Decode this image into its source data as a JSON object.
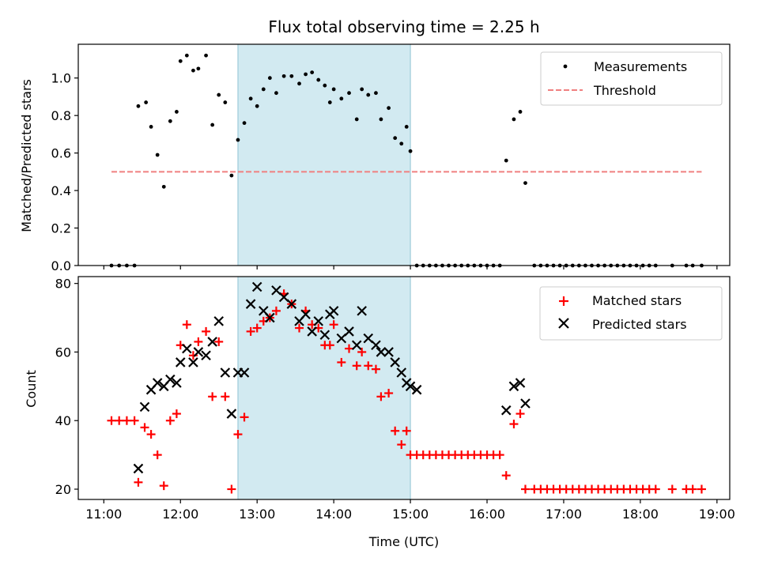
{
  "title": "Flux total observing time = 2.25 h",
  "colors": {
    "measurement": "#000000",
    "threshold": "#f08080",
    "matched": "#ff0000",
    "predicted": "#000000",
    "shade": "#add8e6"
  },
  "chart_data": [
    {
      "type": "scatter",
      "ylabel": "Matched/Predicted stars",
      "xlabel": "",
      "xlim": [
        "10:40",
        "19:10"
      ],
      "ylim": [
        0,
        1.18
      ],
      "xticks": [
        "11:00",
        "12:00",
        "13:00",
        "14:00",
        "15:00",
        "16:00",
        "17:00",
        "18:00",
        "19:00"
      ],
      "yticks": [
        "0.0",
        "0.2",
        "0.4",
        "0.6",
        "0.8",
        "1.0"
      ],
      "legend_position": "top-right",
      "shaded_interval": [
        "12:45",
        "15:00"
      ],
      "threshold": {
        "name": "Threshold",
        "value": 0.5,
        "x": [
          "11:06",
          "18:48"
        ]
      },
      "series": [
        {
          "name": "Measurements",
          "points": [
            [
              "11:06",
              0
            ],
            [
              "11:12",
              0
            ],
            [
              "11:18",
              0
            ],
            [
              "11:24",
              0
            ],
            [
              "11:27",
              0.85
            ],
            [
              "11:33",
              0.87
            ],
            [
              "11:37",
              0.74
            ],
            [
              "11:42",
              0.59
            ],
            [
              "11:47",
              0.42
            ],
            [
              "11:52",
              0.77
            ],
            [
              "11:57",
              0.82
            ],
            [
              "12:00",
              1.09
            ],
            [
              "12:05",
              1.12
            ],
            [
              "12:10",
              1.04
            ],
            [
              "12:14",
              1.05
            ],
            [
              "12:20",
              1.12
            ],
            [
              "12:25",
              0.75
            ],
            [
              "12:30",
              0.91
            ],
            [
              "12:35",
              0.87
            ],
            [
              "12:40",
              0.48
            ],
            [
              "12:45",
              0.67
            ],
            [
              "12:50",
              0.76
            ],
            [
              "12:55",
              0.89
            ],
            [
              "13:00",
              0.85
            ],
            [
              "13:05",
              0.94
            ],
            [
              "13:10",
              1.0
            ],
            [
              "13:15",
              0.92
            ],
            [
              "13:21",
              1.01
            ],
            [
              "13:27",
              1.01
            ],
            [
              "13:33",
              0.97
            ],
            [
              "13:38",
              1.02
            ],
            [
              "13:43",
              1.03
            ],
            [
              "13:48",
              0.99
            ],
            [
              "13:53",
              0.96
            ],
            [
              "13:57",
              0.87
            ],
            [
              "14:00",
              0.94
            ],
            [
              "14:06",
              0.89
            ],
            [
              "14:12",
              0.92
            ],
            [
              "14:18",
              0.78
            ],
            [
              "14:22",
              0.94
            ],
            [
              "14:27",
              0.91
            ],
            [
              "14:33",
              0.92
            ],
            [
              "14:37",
              0.78
            ],
            [
              "14:43",
              0.84
            ],
            [
              "14:48",
              0.68
            ],
            [
              "14:53",
              0.65
            ],
            [
              "14:57",
              0.74
            ],
            [
              "15:00",
              0.61
            ],
            [
              "15:05",
              0
            ],
            [
              "15:10",
              0
            ],
            [
              "15:15",
              0
            ],
            [
              "15:20",
              0
            ],
            [
              "15:25",
              0
            ],
            [
              "15:30",
              0
            ],
            [
              "15:35",
              0
            ],
            [
              "15:40",
              0
            ],
            [
              "15:45",
              0
            ],
            [
              "15:50",
              0
            ],
            [
              "15:55",
              0
            ],
            [
              "16:00",
              0
            ],
            [
              "16:05",
              0
            ],
            [
              "16:10",
              0
            ],
            [
              "16:15",
              0.56
            ],
            [
              "16:21",
              0.78
            ],
            [
              "16:26",
              0.82
            ],
            [
              "16:30",
              0.44
            ],
            [
              "16:37",
              0
            ],
            [
              "16:42",
              0
            ],
            [
              "16:47",
              0
            ],
            [
              "16:52",
              0
            ],
            [
              "16:57",
              0
            ],
            [
              "17:02",
              0
            ],
            [
              "17:07",
              0
            ],
            [
              "17:12",
              0
            ],
            [
              "17:17",
              0
            ],
            [
              "17:22",
              0
            ],
            [
              "17:27",
              0
            ],
            [
              "17:32",
              0
            ],
            [
              "17:37",
              0
            ],
            [
              "17:42",
              0
            ],
            [
              "17:47",
              0
            ],
            [
              "17:52",
              0
            ],
            [
              "17:57",
              0
            ],
            [
              "18:02",
              0
            ],
            [
              "18:07",
              0
            ],
            [
              "18:12",
              0
            ],
            [
              "18:25",
              0
            ],
            [
              "18:36",
              0
            ],
            [
              "18:41",
              0
            ],
            [
              "18:48",
              0
            ]
          ]
        }
      ]
    },
    {
      "type": "scatter",
      "ylabel": "Count",
      "xlabel": "Time (UTC)",
      "xlim": [
        "10:40",
        "19:10"
      ],
      "ylim": [
        17,
        82
      ],
      "xticks": [
        "11:00",
        "12:00",
        "13:00",
        "14:00",
        "15:00",
        "16:00",
        "17:00",
        "18:00",
        "19:00"
      ],
      "yticks": [
        "20",
        "40",
        "60",
        "80"
      ],
      "legend_position": "top-right",
      "shaded_interval": [
        "12:45",
        "15:00"
      ],
      "series": [
        {
          "name": "Matched stars",
          "marker": "plus",
          "points": [
            [
              "11:06",
              40
            ],
            [
              "11:12",
              40
            ],
            [
              "11:18",
              40
            ],
            [
              "11:24",
              40
            ],
            [
              "11:27",
              22
            ],
            [
              "11:32",
              38
            ],
            [
              "11:37",
              36
            ],
            [
              "11:42",
              30
            ],
            [
              "11:47",
              21
            ],
            [
              "11:52",
              40
            ],
            [
              "11:57",
              42
            ],
            [
              "12:00",
              62
            ],
            [
              "12:05",
              68
            ],
            [
              "12:10",
              59
            ],
            [
              "12:14",
              63
            ],
            [
              "12:20",
              66
            ],
            [
              "12:25",
              47
            ],
            [
              "12:30",
              63
            ],
            [
              "12:35",
              47
            ],
            [
              "12:40",
              20
            ],
            [
              "12:45",
              36
            ],
            [
              "12:50",
              41
            ],
            [
              "12:55",
              66
            ],
            [
              "13:00",
              67
            ],
            [
              "13:05",
              69
            ],
            [
              "13:10",
              70
            ],
            [
              "13:15",
              72
            ],
            [
              "13:21",
              77
            ],
            [
              "13:27",
              74
            ],
            [
              "13:33",
              67
            ],
            [
              "13:38",
              72
            ],
            [
              "13:43",
              68
            ],
            [
              "13:48",
              67
            ],
            [
              "13:53",
              62
            ],
            [
              "13:57",
              62
            ],
            [
              "14:00",
              68
            ],
            [
              "14:06",
              57
            ],
            [
              "14:12",
              61
            ],
            [
              "14:18",
              56
            ],
            [
              "14:22",
              60
            ],
            [
              "14:27",
              56
            ],
            [
              "14:33",
              55
            ],
            [
              "14:37",
              47
            ],
            [
              "14:43",
              48
            ],
            [
              "14:48",
              37
            ],
            [
              "14:53",
              33
            ],
            [
              "14:57",
              37
            ],
            [
              "15:00",
              30
            ],
            [
              "15:05",
              30
            ],
            [
              "15:10",
              30
            ],
            [
              "15:15",
              30
            ],
            [
              "15:20",
              30
            ],
            [
              "15:25",
              30
            ],
            [
              "15:30",
              30
            ],
            [
              "15:35",
              30
            ],
            [
              "15:40",
              30
            ],
            [
              "15:45",
              30
            ],
            [
              "15:50",
              30
            ],
            [
              "15:55",
              30
            ],
            [
              "16:00",
              30
            ],
            [
              "16:05",
              30
            ],
            [
              "16:10",
              30
            ],
            [
              "16:15",
              24
            ],
            [
              "16:21",
              39
            ],
            [
              "16:26",
              42
            ],
            [
              "16:30",
              20
            ],
            [
              "16:37",
              20
            ],
            [
              "16:42",
              20
            ],
            [
              "16:47",
              20
            ],
            [
              "16:52",
              20
            ],
            [
              "16:57",
              20
            ],
            [
              "17:02",
              20
            ],
            [
              "17:07",
              20
            ],
            [
              "17:12",
              20
            ],
            [
              "17:17",
              20
            ],
            [
              "17:22",
              20
            ],
            [
              "17:27",
              20
            ],
            [
              "17:32",
              20
            ],
            [
              "17:37",
              20
            ],
            [
              "17:42",
              20
            ],
            [
              "17:47",
              20
            ],
            [
              "17:52",
              20
            ],
            [
              "17:57",
              20
            ],
            [
              "18:02",
              20
            ],
            [
              "18:07",
              20
            ],
            [
              "18:12",
              20
            ],
            [
              "18:25",
              20
            ],
            [
              "18:36",
              20
            ],
            [
              "18:41",
              20
            ],
            [
              "18:48",
              20
            ]
          ]
        },
        {
          "name": "Predicted stars",
          "marker": "cross",
          "points": [
            [
              "11:27",
              26
            ],
            [
              "11:32",
              44
            ],
            [
              "11:37",
              49
            ],
            [
              "11:42",
              51
            ],
            [
              "11:47",
              50
            ],
            [
              "11:52",
              52
            ],
            [
              "11:57",
              51
            ],
            [
              "12:00",
              57
            ],
            [
              "12:05",
              61
            ],
            [
              "12:10",
              57
            ],
            [
              "12:14",
              60
            ],
            [
              "12:20",
              59
            ],
            [
              "12:25",
              63
            ],
            [
              "12:30",
              69
            ],
            [
              "12:35",
              54
            ],
            [
              "12:40",
              42
            ],
            [
              "12:45",
              54
            ],
            [
              "12:50",
              54
            ],
            [
              "12:55",
              74
            ],
            [
              "13:00",
              79
            ],
            [
              "13:05",
              72
            ],
            [
              "13:10",
              70
            ],
            [
              "13:15",
              78
            ],
            [
              "13:21",
              76
            ],
            [
              "13:27",
              74
            ],
            [
              "13:33",
              69
            ],
            [
              "13:38",
              71
            ],
            [
              "13:43",
              66
            ],
            [
              "13:48",
              69
            ],
            [
              "13:53",
              65
            ],
            [
              "13:57",
              71
            ],
            [
              "14:00",
              72
            ],
            [
              "14:06",
              64
            ],
            [
              "14:12",
              66
            ],
            [
              "14:18",
              62
            ],
            [
              "14:22",
              72
            ],
            [
              "14:27",
              64
            ],
            [
              "14:33",
              62
            ],
            [
              "14:37",
              60
            ],
            [
              "14:43",
              60
            ],
            [
              "14:48",
              57
            ],
            [
              "14:53",
              54
            ],
            [
              "14:57",
              51
            ],
            [
              "15:00",
              50
            ],
            [
              "15:05",
              49
            ],
            [
              "16:15",
              43
            ],
            [
              "16:21",
              50
            ],
            [
              "16:26",
              51
            ],
            [
              "16:30",
              45
            ]
          ]
        }
      ]
    }
  ]
}
